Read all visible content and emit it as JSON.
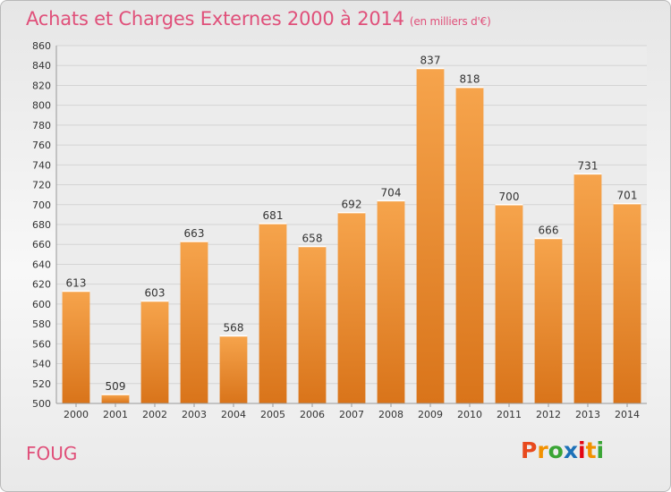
{
  "header": {
    "title": "Achats et Charges Externes 2000 à 2014",
    "subtitle": "(en milliers d'€)"
  },
  "footer": {
    "commune": "FOUG",
    "logo_letters": [
      "P",
      "r",
      "o",
      "x",
      "i",
      "t",
      "i"
    ],
    "logo_colors": [
      "#e8491d",
      "#f29100",
      "#3aa535",
      "#1d71b8",
      "#e30613",
      "#f29100",
      "#3aa535"
    ]
  },
  "colors": {
    "bar_top": "#f6a44c",
    "bar_bottom": "#d9741a",
    "grid": "#d4d4d4",
    "title": "#e0507a"
  },
  "chart_data": {
    "type": "bar",
    "title": "Achats et Charges Externes 2000 à 2014",
    "subtitle": "(en milliers d'€)",
    "categories": [
      "2000",
      "2001",
      "2002",
      "2003",
      "2004",
      "2005",
      "2006",
      "2007",
      "2008",
      "2009",
      "2010",
      "2011",
      "2012",
      "2013",
      "2014"
    ],
    "values": [
      613,
      509,
      603,
      663,
      568,
      681,
      658,
      692,
      704,
      837,
      818,
      700,
      666,
      731,
      701
    ],
    "ylim": [
      500,
      860
    ],
    "ytick_step": 20,
    "grid": true,
    "xlabel": "",
    "ylabel": ""
  }
}
